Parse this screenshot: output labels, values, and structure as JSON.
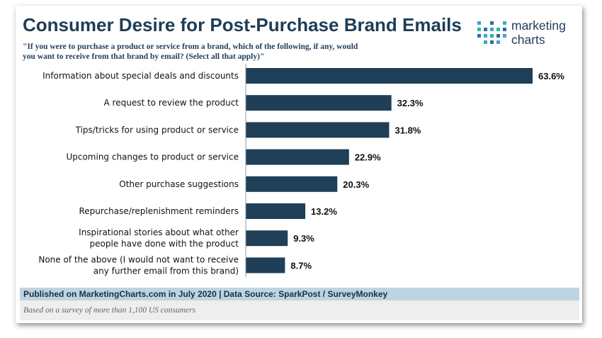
{
  "title": "Consumer Desire for Post-Purchase Brand Emails",
  "subtitle": "\"If you were to purchase a product or service from a brand, which of the following, if any, would you want to receive from that brand by email? (Select all that apply)\"",
  "logo": {
    "line1": "marketing",
    "line2": "charts",
    "colors": [
      "#4a9fd4",
      "#31b8a6",
      "#2d6da3"
    ]
  },
  "chart_data": {
    "type": "bar",
    "orientation": "horizontal",
    "categories": [
      [
        "Information about special deals and discounts"
      ],
      [
        "A request to review the product"
      ],
      [
        "Tips/tricks for using product or service"
      ],
      [
        "Upcoming changes to product or service"
      ],
      [
        "Other purchase suggestions"
      ],
      [
        "Repurchase/replenishment reminders"
      ],
      [
        "Inspirational stories about what other",
        "people have done with the product"
      ],
      [
        "None of the above (I would not want to receive",
        "any further email from this brand)"
      ]
    ],
    "values": [
      63.6,
      32.3,
      31.8,
      22.9,
      20.3,
      13.2,
      9.3,
      8.7
    ],
    "value_labels": [
      "63.6%",
      "32.3%",
      "31.8%",
      "22.9%",
      "20.3%",
      "13.2%",
      "9.3%",
      "8.7%"
    ],
    "xlim": [
      0,
      63.6
    ],
    "bar_color": "#1e3f57",
    "grid": false
  },
  "footer": {
    "source": "Published on MarketingCharts.com in July 2020 | Data Source: SparkPost / SurveyMonkey",
    "note": "Based on a survey of more than 1,100 US consumers"
  }
}
